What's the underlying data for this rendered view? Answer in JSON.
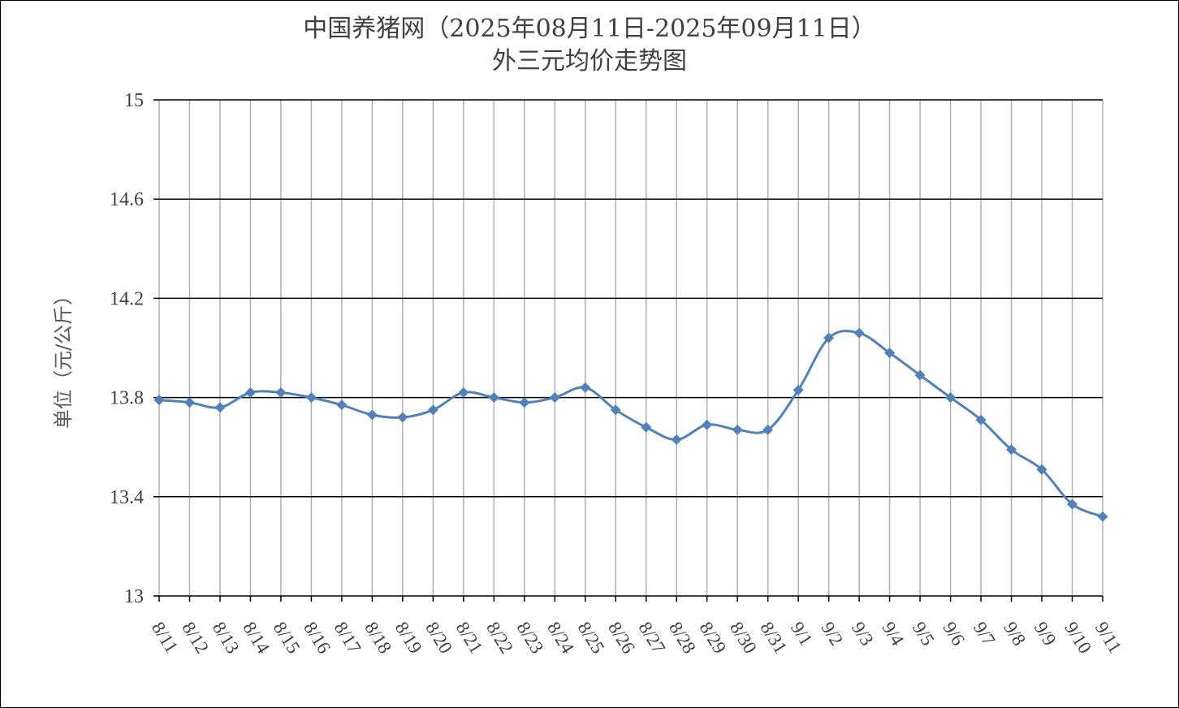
{
  "chart_data": {
    "type": "line",
    "title_line1": "中国养猪网（2025年08月11日-2025年09月11日）",
    "title_line2": "外三元均价走势图",
    "ylabel": "单位（元/公斤）",
    "xlabel": "",
    "ylim": [
      13,
      15
    ],
    "yticks": [
      13,
      13.4,
      13.8,
      14.2,
      14.6,
      15
    ],
    "ytick_labels": [
      "13",
      "13.4",
      "13.8",
      "14.2",
      "14.6",
      "15"
    ],
    "categories": [
      "8/11",
      "8/12",
      "8/13",
      "8/14",
      "8/15",
      "8/16",
      "8/17",
      "8/18",
      "8/19",
      "8/20",
      "8/21",
      "8/22",
      "8/23",
      "8/24",
      "8/25",
      "8/26",
      "8/27",
      "8/28",
      "8/29",
      "8/30",
      "8/31",
      "9/1",
      "9/2",
      "9/3",
      "9/4",
      "9/5",
      "9/6",
      "9/7",
      "9/8",
      "9/9",
      "9/10",
      "9/11"
    ],
    "series": [
      {
        "values": [
          13.79,
          13.78,
          13.76,
          13.82,
          13.82,
          13.8,
          13.77,
          13.73,
          13.72,
          13.75,
          13.82,
          13.8,
          13.78,
          13.8,
          13.84,
          13.75,
          13.68,
          13.63,
          13.69,
          13.67,
          13.67,
          13.83,
          14.04,
          14.06,
          13.98,
          13.89,
          13.8,
          13.71,
          13.59,
          13.51,
          13.37,
          13.32
        ],
        "color": "#4f81bd",
        "marker": "diamond"
      }
    ],
    "grid": "horizontal and vertical",
    "legend": "none"
  }
}
